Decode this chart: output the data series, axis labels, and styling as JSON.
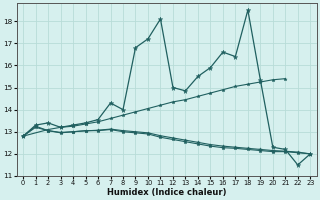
{
  "title": "",
  "xlabel": "Humidex (Indice chaleur)",
  "ylabel": "",
  "background_color": "#d6f0ee",
  "line_color": "#206060",
  "grid_color": "#b8dcd8",
  "xlim": [
    -0.5,
    23.5
  ],
  "ylim": [
    11,
    18.8
  ],
  "yticks": [
    11,
    12,
    13,
    14,
    15,
    16,
    17,
    18
  ],
  "xticks": [
    0,
    1,
    2,
    3,
    4,
    5,
    6,
    7,
    8,
    9,
    10,
    11,
    12,
    13,
    14,
    15,
    16,
    17,
    18,
    19,
    20,
    21,
    22,
    23
  ],
  "series1_x": [
    0,
    1,
    2,
    3,
    4,
    5,
    6,
    7,
    8,
    9,
    10,
    11,
    12,
    13,
    14,
    15,
    16,
    17,
    18,
    19,
    20,
    21,
    22,
    23
  ],
  "series1_y": [
    12.8,
    13.3,
    13.4,
    13.2,
    13.3,
    13.4,
    13.55,
    14.3,
    14.0,
    16.8,
    17.2,
    18.1,
    15.0,
    14.85,
    15.5,
    15.9,
    16.6,
    16.4,
    18.5,
    15.35,
    12.3,
    12.2,
    11.5,
    12.0
  ],
  "series2_x": [
    0,
    2,
    3,
    4,
    5,
    6,
    7,
    8,
    9,
    10,
    11,
    12,
    13,
    14,
    15,
    16,
    17,
    18,
    19,
    20,
    21
  ],
  "series2_y": [
    12.8,
    13.1,
    13.2,
    13.25,
    13.35,
    13.45,
    13.6,
    13.75,
    13.9,
    14.05,
    14.2,
    14.35,
    14.45,
    14.6,
    14.75,
    14.9,
    15.05,
    15.15,
    15.25,
    15.35,
    15.4
  ],
  "series3_x": [
    0,
    1,
    2,
    3,
    4,
    5,
    6,
    7,
    8,
    9,
    10,
    11,
    12,
    13,
    14,
    15,
    16,
    17,
    18,
    19,
    20,
    21,
    22,
    23
  ],
  "series3_y": [
    12.8,
    13.25,
    13.05,
    12.95,
    13.0,
    13.05,
    13.05,
    13.1,
    13.0,
    12.95,
    12.9,
    12.75,
    12.65,
    12.55,
    12.45,
    12.35,
    12.28,
    12.25,
    12.2,
    12.15,
    12.1,
    12.1,
    12.05,
    12.0
  ],
  "series4_x": [
    0,
    1,
    2,
    3,
    4,
    5,
    6,
    7,
    8,
    9,
    10,
    11,
    12,
    13,
    14,
    15,
    16,
    17,
    18,
    19,
    20,
    21,
    22,
    23
  ],
  "series4_y": [
    12.8,
    13.2,
    13.05,
    12.97,
    13.0,
    13.04,
    13.07,
    13.12,
    13.05,
    13.0,
    12.95,
    12.82,
    12.72,
    12.62,
    12.52,
    12.42,
    12.35,
    12.3,
    12.25,
    12.2,
    12.15,
    12.12,
    12.08,
    12.0
  ]
}
